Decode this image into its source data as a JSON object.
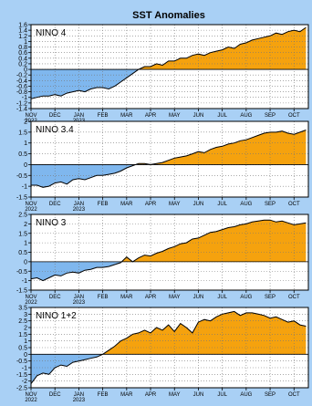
{
  "title": "SST Anomalies",
  "colors": {
    "page_bg": "#a9d0f5",
    "warm_fill": "#f5a20e",
    "cool_fill": "#7fb7ee",
    "line": "#000000",
    "grid": "#777777",
    "plot_bg": "#ffffff"
  },
  "months": [
    {
      "label": "NOV",
      "year": "2022"
    },
    {
      "label": "DEC",
      "year": ""
    },
    {
      "label": "JAN",
      "year": "2023"
    },
    {
      "label": "FEB",
      "year": ""
    },
    {
      "label": "MAR",
      "year": ""
    },
    {
      "label": "APR",
      "year": ""
    },
    {
      "label": "MAY",
      "year": ""
    },
    {
      "label": "JUN",
      "year": ""
    },
    {
      "label": "JUL",
      "year": ""
    },
    {
      "label": "AUG",
      "year": ""
    },
    {
      "label": "SEP",
      "year": ""
    },
    {
      "label": "OCT",
      "year": ""
    }
  ],
  "chart_data": [
    {
      "type": "area",
      "name": "NINO 4",
      "ylim": [
        -1.4,
        1.6
      ],
      "yticks": [
        -1.4,
        -1.2,
        -1,
        -0.8,
        -0.6,
        -0.4,
        -0.2,
        0,
        0.2,
        0.4,
        0.6,
        0.8,
        1,
        1.2,
        1.4,
        1.6
      ],
      "ytick_labels": [
        "-1.4",
        "-1.2",
        "-1",
        "-0.8",
        "-0.6",
        "-0.4",
        "-0.2",
        "0",
        "0.2",
        "0.4",
        "0.6",
        "0.8",
        "1",
        "1.2",
        "1.4",
        "1.6"
      ],
      "x": [
        0,
        0.25,
        0.5,
        0.75,
        1,
        1.25,
        1.5,
        1.75,
        2,
        2.25,
        2.5,
        2.75,
        3,
        3.25,
        3.5,
        3.75,
        4,
        4.25,
        4.5,
        4.75,
        5,
        5.25,
        5.5,
        5.75,
        6,
        6.25,
        6.5,
        6.75,
        7,
        7.25,
        7.5,
        7.75,
        8,
        8.25,
        8.5,
        8.75,
        9,
        9.25,
        9.5,
        9.75,
        10,
        10.25,
        10.5,
        10.75,
        11,
        11.25,
        11.5
      ],
      "values": [
        -1.05,
        -1.0,
        -0.95,
        -0.95,
        -0.9,
        -0.95,
        -0.85,
        -0.8,
        -0.75,
        -0.8,
        -0.7,
        -0.65,
        -0.65,
        -0.7,
        -0.6,
        -0.45,
        -0.3,
        -0.15,
        0.0,
        0.1,
        0.1,
        0.2,
        0.15,
        0.3,
        0.3,
        0.4,
        0.4,
        0.5,
        0.55,
        0.5,
        0.6,
        0.65,
        0.7,
        0.8,
        0.75,
        0.9,
        0.95,
        1.05,
        1.1,
        1.15,
        1.2,
        1.3,
        1.25,
        1.35,
        1.4,
        1.35,
        1.5
      ]
    },
    {
      "type": "area",
      "name": "NINO 3.4",
      "ylim": [
        -1.5,
        2
      ],
      "yticks": [
        -1.5,
        -1,
        -0.5,
        0,
        0.5,
        1,
        1.5,
        2
      ],
      "ytick_labels": [
        "-1.5",
        "-1",
        "-0.5",
        "0",
        "0.5",
        "1",
        "1.5",
        "2"
      ],
      "x": [
        0,
        0.25,
        0.5,
        0.75,
        1,
        1.25,
        1.5,
        1.75,
        2,
        2.25,
        2.5,
        2.75,
        3,
        3.25,
        3.5,
        3.75,
        4,
        4.25,
        4.5,
        4.75,
        5,
        5.25,
        5.5,
        5.75,
        6,
        6.25,
        6.5,
        6.75,
        7,
        7.25,
        7.5,
        7.75,
        8,
        8.25,
        8.5,
        8.75,
        9,
        9.25,
        9.5,
        9.75,
        10,
        10.25,
        10.5,
        10.75,
        11,
        11.25,
        11.5
      ],
      "values": [
        -0.95,
        -0.95,
        -1.05,
        -1.0,
        -0.85,
        -0.8,
        -0.9,
        -0.7,
        -0.65,
        -0.7,
        -0.6,
        -0.5,
        -0.5,
        -0.45,
        -0.4,
        -0.3,
        -0.15,
        -0.05,
        0.05,
        0.05,
        0.0,
        0.05,
        0.1,
        0.2,
        0.3,
        0.35,
        0.4,
        0.5,
        0.6,
        0.55,
        0.7,
        0.8,
        0.85,
        0.95,
        1.0,
        1.1,
        1.15,
        1.25,
        1.35,
        1.45,
        1.5,
        1.5,
        1.55,
        1.45,
        1.4,
        1.5,
        1.6
      ]
    },
    {
      "type": "area",
      "name": "NINO 3",
      "ylim": [
        -1.5,
        2.5
      ],
      "yticks": [
        -1.5,
        -1,
        -0.5,
        0,
        0.5,
        1,
        1.5,
        2,
        2.5
      ],
      "ytick_labels": [
        "-1.5",
        "-1",
        "-0.5",
        "0",
        "0.5",
        "1",
        "1.5",
        "2",
        "2.5"
      ],
      "x": [
        0,
        0.25,
        0.5,
        0.75,
        1,
        1.25,
        1.5,
        1.75,
        2,
        2.25,
        2.5,
        2.75,
        3,
        3.25,
        3.5,
        3.75,
        4,
        4.25,
        4.5,
        4.75,
        5,
        5.25,
        5.5,
        5.75,
        6,
        6.25,
        6.5,
        6.75,
        7,
        7.25,
        7.5,
        7.75,
        8,
        8.25,
        8.5,
        8.75,
        9,
        9.25,
        9.5,
        9.75,
        10,
        10.25,
        10.5,
        10.75,
        11,
        11.25,
        11.5
      ],
      "values": [
        -0.9,
        -0.85,
        -1.0,
        -0.85,
        -0.7,
        -0.75,
        -0.6,
        -0.55,
        -0.6,
        -0.45,
        -0.4,
        -0.3,
        -0.3,
        -0.25,
        -0.15,
        -0.05,
        0.25,
        0.0,
        0.2,
        0.35,
        0.3,
        0.45,
        0.55,
        0.7,
        0.8,
        0.95,
        1.0,
        1.2,
        1.25,
        1.4,
        1.55,
        1.6,
        1.7,
        1.8,
        1.85,
        1.95,
        2.0,
        2.1,
        2.15,
        2.2,
        2.2,
        2.1,
        2.15,
        2.05,
        1.95,
        2.0,
        2.05
      ]
    },
    {
      "type": "area",
      "name": "NINO 1+2",
      "ylim": [
        -2.5,
        3.5
      ],
      "yticks": [
        -2.5,
        -2,
        -1.5,
        -1,
        -0.5,
        0,
        0.5,
        1,
        1.5,
        2,
        2.5,
        3,
        3.5
      ],
      "ytick_labels": [
        "-2.5",
        "-2",
        "-1.5",
        "-1",
        "-0.5",
        "0",
        "0.5",
        "1",
        "1.5",
        "2",
        "2.5",
        "3",
        "3.5"
      ],
      "x": [
        0,
        0.25,
        0.5,
        0.75,
        1,
        1.25,
        1.5,
        1.75,
        2,
        2.25,
        2.5,
        2.75,
        3,
        3.25,
        3.5,
        3.75,
        4,
        4.25,
        4.5,
        4.75,
        5,
        5.25,
        5.5,
        5.75,
        6,
        6.25,
        6.5,
        6.75,
        7,
        7.25,
        7.5,
        7.75,
        8,
        8.25,
        8.5,
        8.75,
        9,
        9.25,
        9.5,
        9.75,
        10,
        10.25,
        10.5,
        10.75,
        11,
        11.25,
        11.5
      ],
      "values": [
        -2.2,
        -1.6,
        -1.4,
        -1.5,
        -1.0,
        -0.8,
        -0.9,
        -0.6,
        -0.5,
        -0.4,
        -0.3,
        -0.2,
        0.0,
        0.3,
        0.6,
        1.0,
        1.2,
        1.5,
        1.6,
        1.8,
        1.6,
        2.0,
        1.8,
        2.2,
        1.7,
        2.3,
        2.0,
        1.6,
        2.4,
        2.6,
        2.5,
        2.8,
        3.0,
        3.1,
        3.2,
        2.9,
        3.1,
        3.1,
        3.0,
        2.9,
        2.7,
        2.8,
        2.6,
        2.4,
        2.5,
        2.2,
        2.1
      ]
    }
  ]
}
